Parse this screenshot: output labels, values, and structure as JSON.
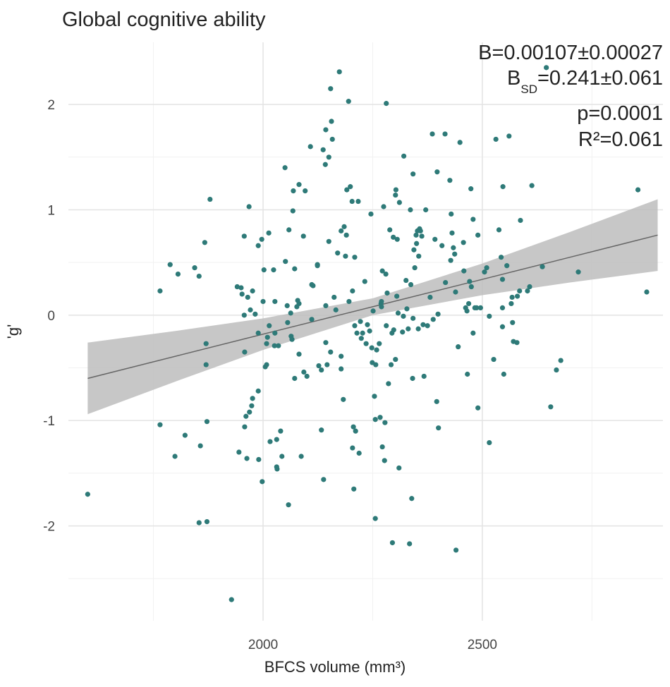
{
  "chart_data": {
    "type": "scatter",
    "title": "Global cognitive ability",
    "x_label": "BFCS volume (mm³)",
    "y_label": "'g'",
    "annotation_slope": "B=0.00107±0.00027",
    "annotation_std": {
      "symbol": "B",
      "subscript": "SD",
      "text": "=0.241±0.061"
    },
    "annotation_p": "p=0.0001",
    "annotation_r2": "R²=0.061",
    "color": "#2e7a78",
    "xlim": [
      1556,
      2912
    ],
    "ylim": [
      -2.9,
      2.59
    ],
    "xticks": [
      2000,
      2500
    ],
    "yticks": [
      -2,
      -1,
      0,
      1,
      2
    ],
    "x_minor_grid": [
      1750,
      2250,
      2750
    ],
    "y_minor_grid": [
      -2.5,
      -1.5,
      -0.5,
      0.5,
      1.5
    ],
    "grid": true,
    "fit": {
      "color": "#666666",
      "band_color": "#bdbdbd",
      "x": [
        1600,
        1800,
        2000,
        2250,
        2500,
        2700,
        2900
      ],
      "y": [
        -0.6,
        -0.39,
        -0.18,
        0.08,
        0.34,
        0.55,
        0.76
      ],
      "lower": [
        -0.94,
        -0.63,
        -0.33,
        0.0,
        0.19,
        0.31,
        0.42
      ],
      "upper": [
        -0.26,
        -0.15,
        -0.03,
        0.16,
        0.49,
        0.79,
        1.1
      ]
    },
    "x": [
      1600,
      1765,
      1765,
      1788,
      1806,
      1799,
      1822,
      1844,
      1854,
      1857,
      1854,
      1867,
      1870,
      1872,
      1872,
      1870,
      1879,
      1928,
      1941,
      1945,
      1950,
      1952,
      1957,
      1957,
      1958,
      1958,
      1961,
      1963,
      1965,
      1968,
      1971,
      1969,
      1974,
      1976,
      1976,
      1982,
      1989,
      1989,
      1989,
      1990,
      1997,
      1998,
      2000,
      2002,
      2005,
      2008,
      2008,
      2010,
      2013,
      2014,
      2016,
      2024,
      2026,
      2027,
      2031,
      2031,
      2032,
      2027,
      2035,
      2040,
      2043,
      2050,
      2051,
      2055,
      2056,
      2058,
      2059,
      2063,
      2064,
      2066,
      2068,
      2069,
      2072,
      2072,
      2077,
      2079,
      2082,
      2082,
      2082,
      2087,
      2092,
      2093,
      2096,
      2100,
      2108,
      2111,
      2111,
      2114,
      2124,
      2124,
      2127,
      2133,
      2133,
      2137,
      2138,
      2142,
      2143,
      2143,
      2143,
      2146,
      2150,
      2150,
      2154,
      2156,
      2158,
      2154,
      2162,
      2166,
      2170,
      2174,
      2178,
      2178,
      2178,
      2183,
      2185,
      2188,
      2190,
      2191,
      2195,
      2196,
      2199,
      2203,
      2204,
      2206,
      2204,
      2207,
      2209,
      2209,
      2211,
      2214,
      2217,
      2219,
      2222,
      2224,
      2227,
      2232,
      2235,
      2238,
      2243,
      2246,
      2248,
      2249,
      2251,
      2254,
      2256,
      2256,
      2257,
      2259,
      2265,
      2267,
      2269,
      2270,
      2270,
      2272,
      2272,
      2275,
      2277,
      2278,
      2280,
      2281,
      2281,
      2283,
      2286,
      2289,
      2292,
      2294,
      2295,
      2297,
      2298,
      2302,
      2302,
      2303,
      2305,
      2306,
      2308,
      2310,
      2311,
      2318,
      2320,
      2321,
      2326,
      2328,
      2331,
      2334,
      2336,
      2337,
      2339,
      2341,
      2342,
      2342,
      2344,
      2346,
      2349,
      2350,
      2352,
      2354,
      2355,
      2357,
      2359,
      2362,
      2365,
      2367,
      2371,
      2375,
      2381,
      2386,
      2388,
      2392,
      2396,
      2397,
      2400,
      2399,
      2408,
      2415,
      2416,
      2426,
      2428,
      2429,
      2431,
      2434,
      2437,
      2439,
      2440,
      2445,
      2449,
      2457,
      2458,
      2462,
      2465,
      2466,
      2469,
      2471,
      2474,
      2475,
      2479,
      2479,
      2483,
      2487,
      2490,
      2490,
      2496,
      2505,
      2510,
      2516,
      2516,
      2526,
      2531,
      2538,
      2543,
      2546,
      2546,
      2546,
      2547,
      2549,
      2556,
      2561,
      2566,
      2568,
      2569,
      2571,
      2579,
      2580,
      2585,
      2587,
      2603,
      2608,
      2613,
      2637,
      2646,
      2656,
      2669,
      2679,
      2719,
      2855,
      2875
    ],
    "values": [
      -1.7,
      0.23,
      -1.04,
      0.48,
      0.39,
      -1.34,
      -1.14,
      0.45,
      0.37,
      -1.24,
      -1.97,
      0.69,
      -0.27,
      -1.01,
      -1.96,
      -0.47,
      1.1,
      -2.7,
      0.27,
      -1.3,
      0.26,
      0.2,
      0.75,
      0.0,
      -0.35,
      -1.06,
      -0.96,
      -1.36,
      0.17,
      1.03,
      0.05,
      -0.92,
      -0.86,
      0.23,
      -0.79,
      0.01,
      0.66,
      -0.17,
      -0.72,
      -1.37,
      0.72,
      -1.58,
      0.13,
      0.43,
      -0.49,
      -0.47,
      -0.27,
      -0.21,
      0.78,
      -0.1,
      -1.2,
      0.43,
      -0.29,
      -0.17,
      -1.18,
      -1.44,
      -1.46,
      0.13,
      -0.29,
      -1.1,
      -1.34,
      1.4,
      0.51,
      0.09,
      -0.07,
      -1.8,
      0.81,
      0.02,
      -0.2,
      -0.23,
      0.99,
      1.18,
      0.44,
      -0.6,
      0.08,
      0.14,
      0.11,
      -0.37,
      1.24,
      -1.34,
      0.75,
      -0.54,
      1.18,
      -0.58,
      1.6,
      -0.04,
      0.29,
      0.28,
      0.48,
      0.47,
      -0.48,
      -0.52,
      -1.09,
      1.57,
      -1.56,
      1.43,
      1.76,
      0.09,
      -0.26,
      -0.47,
      1.5,
      0.7,
      2.15,
      1.84,
      1.67,
      -0.35,
      0.17,
      0.05,
      0.59,
      2.31,
      0.8,
      -0.39,
      -0.51,
      -0.8,
      0.84,
      0.56,
      0.76,
      1.19,
      2.03,
      0.13,
      1.22,
      1.08,
      0.23,
      -1.06,
      -1.26,
      -1.65,
      0.55,
      -0.1,
      -1.1,
      -0.17,
      1.08,
      -1.31,
      -0.06,
      -0.22,
      -0.17,
      0.32,
      -0.27,
      -0.09,
      -0.15,
      0.96,
      -0.31,
      -0.45,
      0.04,
      -0.77,
      -0.99,
      -1.93,
      -0.47,
      -0.33,
      -0.27,
      -0.97,
      0.11,
      0.13,
      0.08,
      0.42,
      -1.25,
      1.03,
      -1.38,
      -1.02,
      0.39,
      2.01,
      -0.1,
      0.21,
      -0.65,
      0.81,
      -0.47,
      -0.17,
      -2.16,
      0.74,
      -0.14,
      -0.42,
      1.14,
      1.19,
      0.18,
      0.72,
      0.02,
      -1.45,
      1.07,
      -0.16,
      -0.01,
      1.51,
      0.33,
      0.06,
      -0.13,
      -2.17,
      1.0,
      0.29,
      -1.74,
      -0.6,
      1.34,
      -0.03,
      0.62,
      0.45,
      0.76,
      0.68,
      0.8,
      -0.13,
      0.56,
      0.82,
      0.8,
      0.75,
      -0.09,
      -0.58,
      1.0,
      -0.1,
      0.17,
      1.72,
      -0.04,
      0.72,
      -0.82,
      1.36,
      -1.07,
      0.01,
      0.66,
      1.72,
      0.31,
      1.28,
      0.52,
      0.96,
      0.78,
      0.64,
      0.58,
      0.22,
      -2.23,
      -0.3,
      1.64,
      0.69,
      0.42,
      0.07,
      0.04,
      -0.56,
      0.11,
      0.32,
      1.2,
      0.27,
      0.91,
      -0.17,
      0.07,
      0.07,
      0.76,
      -0.88,
      0.07,
      0.41,
      0.45,
      -0.01,
      -1.21,
      -0.42,
      1.67,
      0.81,
      0.55,
      0.34,
      0.07,
      -0.11,
      1.22,
      -0.56,
      0.47,
      1.7,
      0.11,
      0.17,
      -0.07,
      -0.25,
      -0.26,
      0.18,
      0.23,
      0.9,
      0.23,
      0.27,
      1.23,
      0.46,
      2.35,
      -0.87,
      -0.52,
      -0.43,
      0.41,
      1.19,
      0.22
    ]
  }
}
